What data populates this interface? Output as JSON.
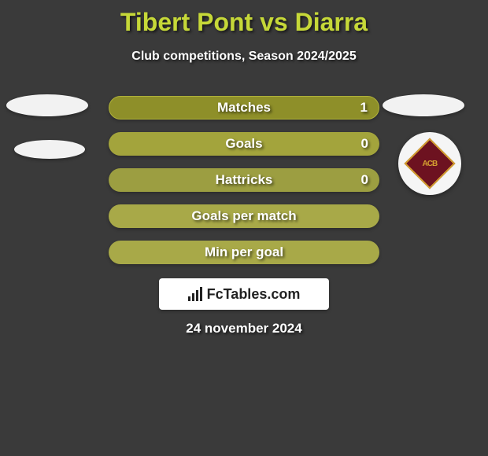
{
  "title": "Tibert Pont vs Diarra",
  "subtitle": "Club competitions, Season 2024/2025",
  "title_color": "#c6d838",
  "text_color": "#ffffff",
  "background_color": "#3a3a3a",
  "left_decor": {
    "ellipse_a_color": "#f2f2f2",
    "ellipse_b_color": "#f2f2f2"
  },
  "right_decor": {
    "ellipse_color": "#f2f2f2",
    "crest": {
      "bg": "#f5f5f5",
      "diamond_fill": "#6d1220",
      "diamond_border": "#d4a030",
      "text": "ACB",
      "text_color": "#d4a030"
    }
  },
  "bars": [
    {
      "label": "Matches",
      "value": "1",
      "bg": "#8e8f29"
    },
    {
      "label": "Goals",
      "value": "0",
      "bg": "#a3a43c"
    },
    {
      "label": "Hattricks",
      "value": "0",
      "bg": "#9c9e41"
    },
    {
      "label": "Goals per match",
      "value": "",
      "bg": "#a8a948"
    },
    {
      "label": "Min per goal",
      "value": "",
      "bg": "#a8a948"
    }
  ],
  "brand": {
    "label": "FcTables.com",
    "bg": "#ffffff",
    "text_color": "#222222"
  },
  "date": "24 november 2024"
}
